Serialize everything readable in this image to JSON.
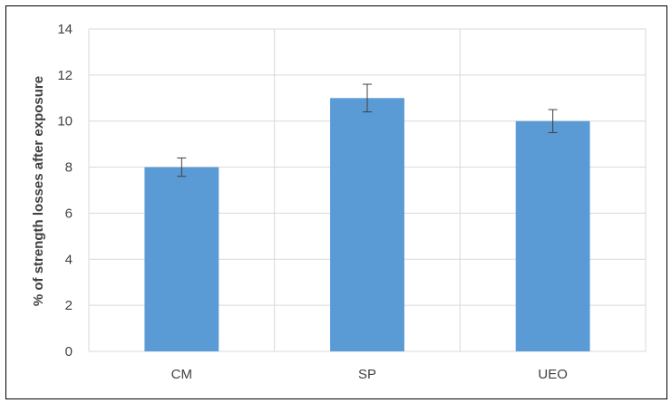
{
  "chart_data": {
    "type": "bar",
    "title": "",
    "xlabel": "",
    "ylabel": "% of strength losses after exposure",
    "categories": [
      "CM",
      "SP",
      "UEO"
    ],
    "values": [
      8,
      11,
      10
    ],
    "error": [
      0.4,
      0.6,
      0.5
    ],
    "ylim": [
      0,
      14
    ],
    "yticks": [
      0,
      2,
      4,
      6,
      8,
      10,
      12,
      14
    ],
    "ytick_labels": [
      "0",
      "2",
      "4",
      "6",
      "8",
      "10",
      "12",
      "14"
    ],
    "grid": true,
    "legend": "none",
    "colors": {
      "bar": "#5b9bd5",
      "grid": "#d9d9d9",
      "error_bar": "#404040",
      "text": "#404040"
    }
  }
}
